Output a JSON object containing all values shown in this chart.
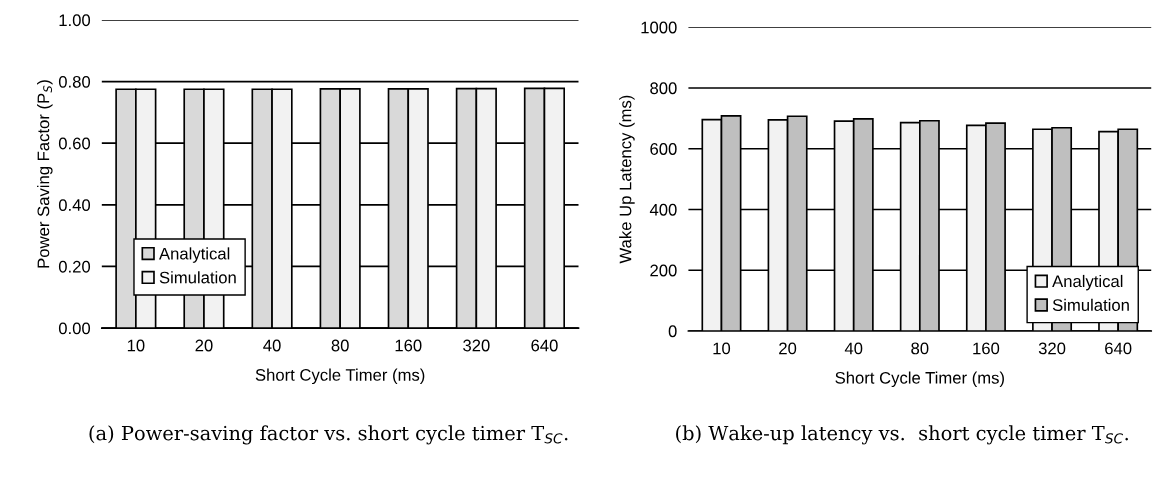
{
  "chart_data": [
    {
      "type": "bar",
      "categories": [
        "10",
        "20",
        "40",
        "80",
        "160",
        "320",
        "640"
      ],
      "xlabel": "Short Cycle Timer (ms)",
      "ylabel": "Power Saving Factor (P$_{S}$)",
      "series": [
        {
          "name": "Analytical",
          "color": "#d9d9d9",
          "values": [
            0.775,
            0.775,
            0.775,
            0.776,
            0.776,
            0.777,
            0.778
          ]
        },
        {
          "name": "Simulation",
          "color": "#f2f2f2",
          "values": [
            0.775,
            0.775,
            0.775,
            0.776,
            0.776,
            0.777,
            0.778
          ]
        }
      ],
      "ylim": [
        0,
        1
      ],
      "yticks": [
        {
          "value": 0,
          "label": "0.00"
        },
        {
          "value": 0.2,
          "label": "0.20"
        },
        {
          "value": 0.4,
          "label": "0.40"
        },
        {
          "value": 0.6,
          "label": "0.60"
        },
        {
          "value": 0.8,
          "label": "0.80"
        },
        {
          "value": 1,
          "label": "1.00"
        }
      ],
      "grid": "y",
      "legend": "bottom left",
      "annotations": [
        "(a) Power-saving factor vs. short cycle timer T$_{SC}$."
      ]
    },
    {
      "type": "bar",
      "categories": [
        "10",
        "20",
        "40",
        "80",
        "160",
        "320",
        "640"
      ],
      "xlabel": "Short Cycle Timer (ms)",
      "ylabel": "Wake Up Latency (ms)",
      "series": [
        {
          "name": "Analytical",
          "color": "#f2f2f2",
          "values": [
            696,
            695,
            691,
            686,
            677,
            664,
            656
          ]
        },
        {
          "name": "Simulation",
          "color": "#bfbfbf",
          "values": [
            708,
            707,
            698,
            692,
            684,
            669,
            664
          ]
        }
      ],
      "ylim": [
        0,
        1000
      ],
      "yticks": [
        0,
        200,
        400,
        600,
        800,
        1000
      ],
      "grid": "y",
      "legend": "bottom right",
      "annotations": [
        "(b) Wake-up latency vs.  short cycle timer T$_{SC}$."
      ]
    }
  ]
}
